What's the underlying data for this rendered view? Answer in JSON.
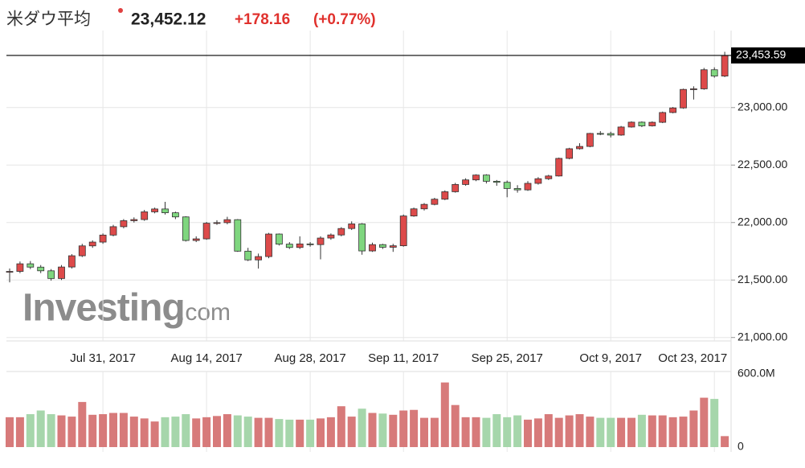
{
  "chart_data": {
    "type": "candlestick",
    "name": "米ダウ平均",
    "last": "23,452.12",
    "change": "+178.16",
    "change_pct": "(+0.77%)",
    "watermark": [
      "Investing",
      ".com"
    ],
    "current_line": {
      "value": 23453.59,
      "label": "23,453.59"
    },
    "up_color": "#dd4a4a",
    "down_color": "#7fd67f",
    "up_volume_color": "#d77a7a",
    "down_volume_color": "#a6d6ab",
    "grid": true,
    "xticks": [
      {
        "value": 9,
        "label": "Jul 31, 2017"
      },
      {
        "value": 19,
        "label": "Aug 14, 2017"
      },
      {
        "value": 29,
        "label": "Aug 28, 2017"
      },
      {
        "value": 38,
        "label": "Sep 11, 2017"
      },
      {
        "value": 48,
        "label": "Sep 25, 2017"
      },
      {
        "value": 58,
        "label": "Oct 9, 2017"
      },
      {
        "value": 68,
        "label": "Oct 23, 2017"
      }
    ],
    "ylim": [
      20970,
      23600
    ],
    "yticks": [
      {
        "value": 21000,
        "label": "21,000.00"
      },
      {
        "value": 21500,
        "label": "21,500.00"
      },
      {
        "value": 22000,
        "label": "22,000.00"
      },
      {
        "value": 22500,
        "label": "22,500.00"
      },
      {
        "value": 23000,
        "label": "23,000.00"
      }
    ],
    "open": [
      21570,
      21575,
      21641,
      21612,
      21580,
      21513,
      21613,
      21711,
      21797,
      21830,
      21891,
      21964,
      22016,
      22026,
      22093,
      22118,
      22085,
      22049,
      21844,
      21858,
      21994,
      21999,
      22025,
      21751,
      21675,
      21704,
      21900,
      21812,
      21783,
      21814,
      21808,
      21865,
      21892,
      21948,
      21988,
      21753,
      21808,
      21785,
      21798,
      22057,
      22119,
      22158,
      22203,
      22268,
      22331,
      22371,
      22413,
      22359,
      22350,
      22296,
      22284,
      22341,
      22381,
      22405,
      22558,
      22642,
      22662,
      22775,
      22774,
      22761,
      22831,
      22873,
      22841,
      22872,
      22957,
      22997,
      23158,
      23163,
      23329,
      23274
    ],
    "high": [
      21600,
      21661,
      21665,
      21630,
      21595,
      21630,
      21725,
      21815,
      21845,
      21905,
      21980,
      22030,
      22045,
      22110,
      22130,
      22180,
      22095,
      22055,
      21880,
      22005,
      22020,
      22050,
      22030,
      21780,
      21730,
      21910,
      21905,
      21830,
      21880,
      21830,
      21880,
      21905,
      21960,
      22010,
      21995,
      21825,
      21815,
      21815,
      22070,
      22130,
      22170,
      22215,
      22280,
      22345,
      22385,
      22420,
      22420,
      22370,
      22365,
      22325,
      22360,
      22395,
      22415,
      22565,
      22650,
      22690,
      22780,
      22795,
      22790,
      22840,
      22880,
      22880,
      22880,
      22965,
      23005,
      23165,
      23185,
      23345,
      23350,
      23485
    ],
    "low": [
      21480,
      21560,
      21595,
      21560,
      21495,
      21500,
      21600,
      21700,
      21780,
      21815,
      21880,
      21950,
      22000,
      22015,
      22080,
      22070,
      22030,
      21835,
      21830,
      21850,
      21980,
      21985,
      21745,
      21665,
      21600,
      21690,
      21800,
      21770,
      21770,
      21790,
      21680,
      21850,
      21880,
      21935,
      21720,
      21745,
      21770,
      21745,
      21790,
      22050,
      22105,
      22150,
      22195,
      22260,
      22320,
      22360,
      22340,
      22320,
      22220,
      22260,
      22275,
      22330,
      22370,
      22400,
      22550,
      22635,
      22655,
      22760,
      22740,
      22755,
      22825,
      22830,
      22835,
      22865,
      22950,
      22990,
      23070,
      23155,
      23260,
      23265
    ],
    "close": [
      21575,
      21641,
      21612,
      21580,
      21513,
      21613,
      21711,
      21797,
      21830,
      21891,
      21964,
      22016,
      22026,
      22093,
      22118,
      22085,
      22049,
      21844,
      21858,
      21994,
      21999,
      22025,
      21751,
      21675,
      21704,
      21900,
      21812,
      21783,
      21814,
      21808,
      21865,
      21892,
      21948,
      21988,
      21753,
      21808,
      21785,
      21798,
      22057,
      22119,
      22158,
      22203,
      22268,
      22331,
      22371,
      22413,
      22359,
      22350,
      22296,
      22284,
      22341,
      22381,
      22405,
      22558,
      22642,
      22662,
      22775,
      22774,
      22761,
      22831,
      22873,
      22841,
      22872,
      22957,
      22997,
      23158,
      23163,
      23329,
      23274,
      23452.12
    ],
    "volume": [
      245000000,
      245000000,
      270000000,
      300000000,
      270000000,
      260000000,
      250000000,
      370000000,
      265000000,
      270000000,
      280000000,
      280000000,
      250000000,
      235000000,
      210000000,
      245000000,
      250000000,
      270000000,
      235000000,
      245000000,
      255000000,
      270000000,
      260000000,
      250000000,
      240000000,
      240000000,
      230000000,
      225000000,
      225000000,
      225000000,
      235000000,
      245000000,
      335000000,
      250000000,
      315000000,
      280000000,
      275000000,
      265000000,
      300000000,
      305000000,
      240000000,
      240000000,
      530000000,
      345000000,
      245000000,
      245000000,
      240000000,
      270000000,
      245000000,
      260000000,
      225000000,
      235000000,
      270000000,
      240000000,
      260000000,
      270000000,
      250000000,
      240000000,
      240000000,
      240000000,
      240000000,
      265000000,
      260000000,
      260000000,
      245000000,
      250000000,
      300000000,
      405000000,
      395000000,
      90000000
    ],
    "volume_ylim": [
      0,
      600000000
    ],
    "volume_yticks": [
      {
        "value": 0,
        "label": "0"
      },
      {
        "value": 600000000,
        "label": "600.0M"
      }
    ]
  }
}
